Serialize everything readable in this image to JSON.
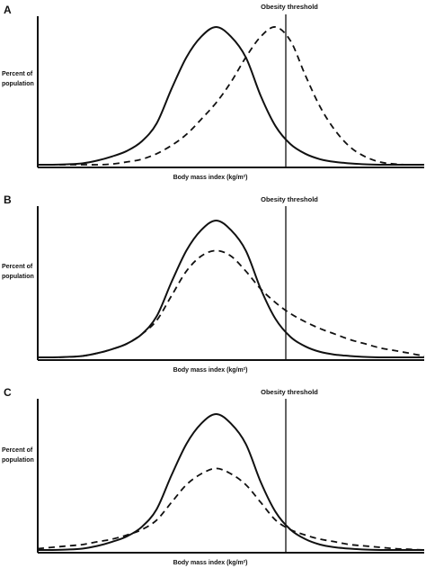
{
  "chart_data": [
    {
      "type": "line",
      "panel": "A",
      "threshold_label": "Obesity threshold",
      "ylabel": [
        "Percent of",
        "population"
      ],
      "xlabel": "Body mass index (kg/m²)",
      "series": [
        {
          "style": "solid",
          "values": [
            0,
            0,
            0.3,
            1,
            3,
            6,
            10,
            17,
            30,
            55,
            78,
            93,
            100,
            93,
            78,
            50,
            28,
            15,
            8,
            4,
            2,
            1,
            0.3,
            0,
            0,
            0,
            0
          ]
        },
        {
          "style": "dashed",
          "values": [
            0,
            0,
            0,
            0,
            0,
            0.5,
            2,
            4,
            8,
            14,
            22,
            33,
            45,
            60,
            78,
            93,
            100,
            90,
            65,
            42,
            25,
            13,
            6,
            2,
            0.5,
            0,
            0
          ]
        }
      ]
    },
    {
      "type": "line",
      "panel": "B",
      "threshold_label": "Obesity threshold",
      "ylabel": [
        "Percent of",
        "population"
      ],
      "xlabel": "Body mass index (kg/m²)",
      "series": [
        {
          "style": "solid",
          "values": [
            0,
            0,
            0.3,
            1,
            3,
            6,
            10,
            17,
            30,
            55,
            78,
            93,
            100,
            93,
            78,
            50,
            28,
            15,
            8,
            4,
            2,
            1,
            0.3,
            0,
            0,
            0,
            0
          ]
        },
        {
          "style": "dashed",
          "values": [
            0,
            0,
            0.3,
            1,
            3,
            6,
            10,
            17,
            27,
            45,
            63,
            74,
            78,
            74,
            63,
            50,
            40,
            32,
            26,
            21,
            17,
            13,
            10,
            7,
            5,
            3,
            1
          ]
        }
      ]
    },
    {
      "type": "line",
      "panel": "C",
      "threshold_label": "Obesity threshold",
      "ylabel": [
        "Percent of",
        "population"
      ],
      "xlabel": "Body mass index (kg/m²)",
      "series": [
        {
          "style": "solid",
          "values": [
            0,
            0,
            0.3,
            1,
            3,
            6,
            10,
            17,
            30,
            55,
            78,
            93,
            100,
            93,
            78,
            50,
            28,
            15,
            8,
            4,
            2,
            1,
            0.3,
            0,
            0,
            0,
            0
          ]
        },
        {
          "style": "dashed",
          "values": [
            1,
            2,
            3,
            4,
            6,
            8,
            11,
            15,
            22,
            35,
            48,
            56,
            60,
            56,
            48,
            35,
            22,
            15,
            11,
            8,
            6,
            4,
            3,
            2,
            1,
            0.5,
            0
          ]
        }
      ]
    }
  ]
}
